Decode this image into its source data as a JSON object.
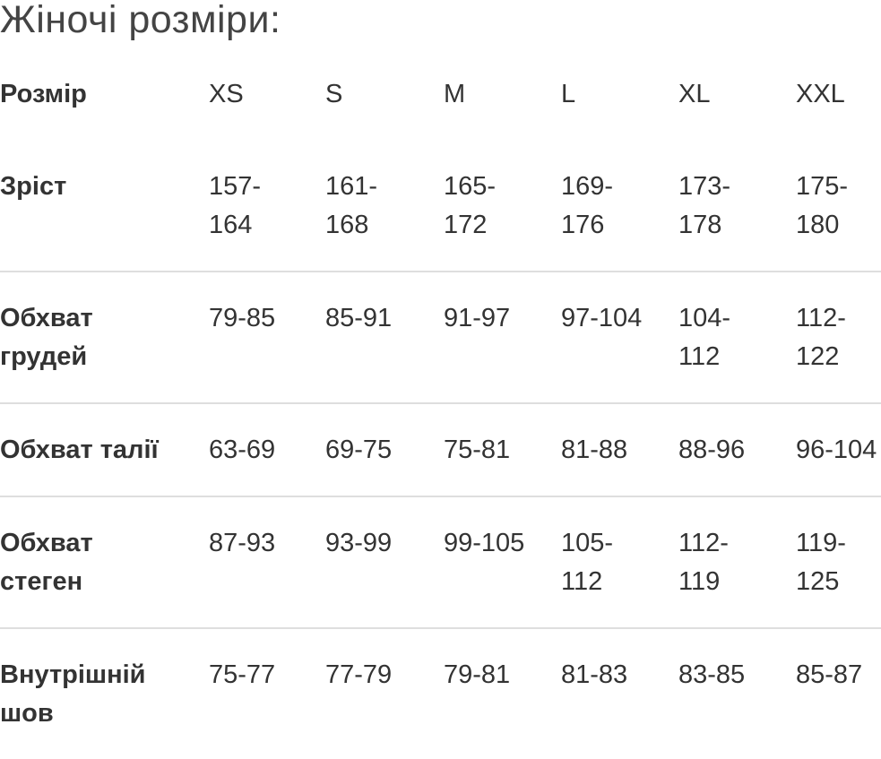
{
  "title": "Жіночі розміри:",
  "table": {
    "header": [
      "Розмір",
      "XS",
      "S",
      "M",
      "L",
      "XL",
      "XXL"
    ],
    "rows": [
      [
        "Зріст",
        "157-164",
        "161-168",
        "165-172",
        "169-176",
        "173-178",
        "175-180"
      ],
      [
        "Обхват грудей",
        "79-85",
        "85-91",
        "91-97",
        "97-104",
        "104-112",
        "112-122"
      ],
      [
        "Обхват талії",
        "63-69",
        "69-75",
        "75-81",
        "81-88",
        "88-96",
        "96-104"
      ],
      [
        "Обхват стеген",
        "87-93",
        "93-99",
        "99-105",
        "105-112",
        "112-119",
        "119-125"
      ],
      [
        "Внутрішній шов",
        "75-77",
        "77-79",
        "79-81",
        "81-83",
        "83-85",
        "85-87"
      ]
    ]
  }
}
